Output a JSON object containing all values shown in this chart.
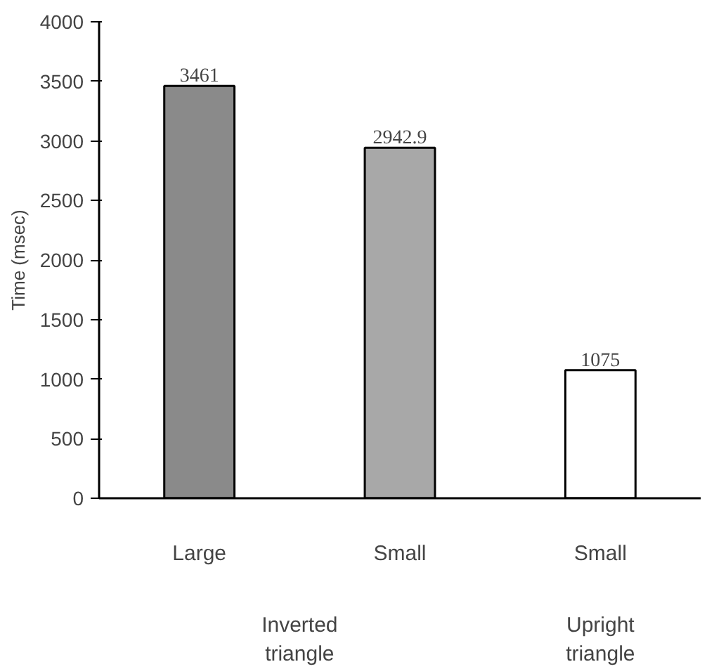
{
  "chart_data": {
    "type": "bar",
    "ylabel": "Time (msec)",
    "categories": [
      "Large",
      "Small",
      "Small"
    ],
    "values": [
      3461,
      2942.9,
      1075
    ],
    "colors": [
      "#8a8a8a",
      "#a8a8a8",
      "#ffffff"
    ],
    "ylim": [
      0,
      4000
    ],
    "yticks": [
      0,
      500,
      1000,
      1500,
      2000,
      2500,
      3000,
      3500,
      4000
    ],
    "data_labels": true,
    "grid": false,
    "annotations": [
      "Inverted triangle",
      "Upright triangle"
    ]
  }
}
